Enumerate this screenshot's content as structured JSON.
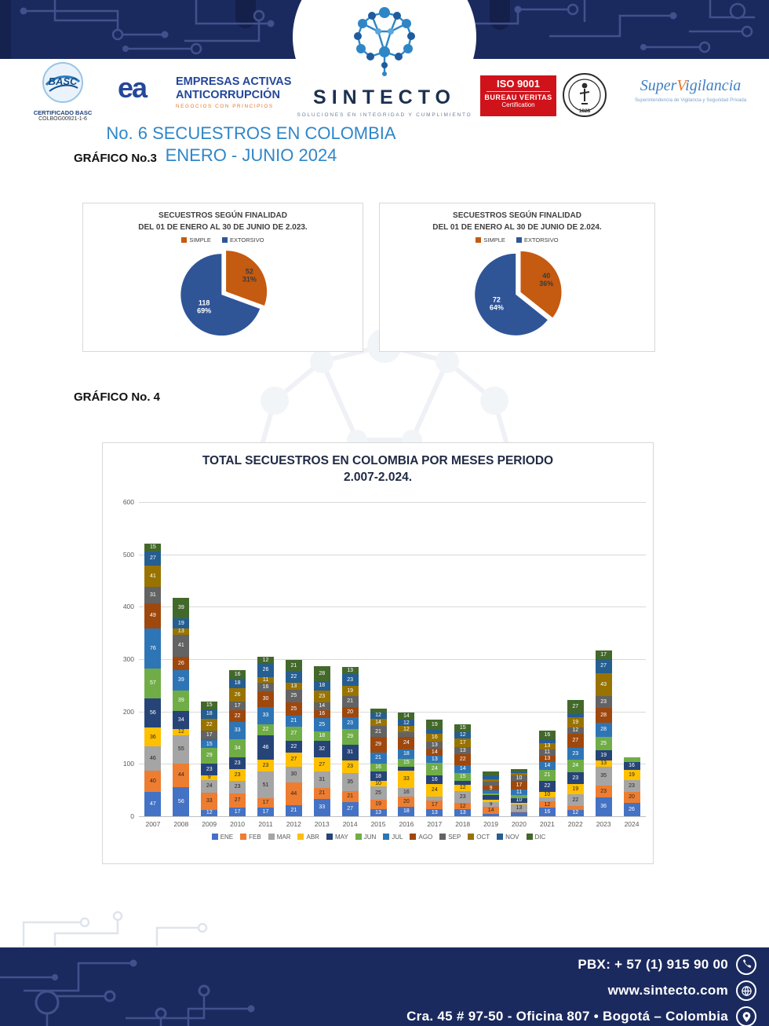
{
  "page": {
    "title_line1": "No. 6 SECUESTROS EN COLOMBIA",
    "title_line2": "ENERO - JUNIO 2024",
    "grafico3_label": "GRÁFICO No.3",
    "grafico4_label": "GRÁFICO No. 4"
  },
  "header": {
    "basc": {
      "brand": "BASC",
      "cert_line1": "CERTIFICADO BASC",
      "cert_line2": "COLBOG00921-1-6"
    },
    "eaa": {
      "monogram": "ea",
      "line1": "EMPRESAS ACTIVAS",
      "line2": "ANTICORRUPCIÓN",
      "line3": "NEGOCIOS CON PRINCIPIOS"
    },
    "sintecto": {
      "wordmark": "SINTECTO",
      "tagline": "SOLUCIONES EN INTEGRIDAD Y CUMPLIMIENTO"
    },
    "iso": {
      "line1": "ISO 9001",
      "line2": "BUREAU VERITAS",
      "line3": "Certification",
      "seal_year": "1828"
    },
    "supervigilancia": {
      "word_a": "Super",
      "word_b": "V",
      "word_c": "igilancia",
      "tagline": "Superintendencia de Vigilancia y Seguridad Privada"
    }
  },
  "footer": {
    "pbx": "PBX: + 57 (1) 915 90 00",
    "website": "www.sintecto.com",
    "address": "Cra. 45 # 97-50 - Oficina 807 • Bogotá – Colombia"
  },
  "chart_data": [
    {
      "type": "pie",
      "title_line1": "SECUESTROS SEGÚN FINALIDAD",
      "title_line2": "DEL 01 DE ENERO AL 30 DE JUNIO DE 2.023.",
      "legend": [
        "SIMPLE",
        "EXTORSIVO"
      ],
      "values": [
        52,
        118
      ],
      "percent_labels": [
        "31%",
        "69%"
      ],
      "colors": [
        "#C55A11",
        "#2F5597"
      ],
      "label_text_colors": [
        "#3B3B3B",
        "#FFFFFF"
      ],
      "legend_position": "top"
    },
    {
      "type": "pie",
      "title_line1": "SECUESTROS SEGÚN FINALIDAD",
      "title_line2": "DEL 01 DE ENERO AL 30 DE JUNIO DE 2.024.",
      "legend": [
        "SIMPLE",
        "EXTORSIVO"
      ],
      "values": [
        40,
        72
      ],
      "percent_labels": [
        "36%",
        "64%"
      ],
      "colors": [
        "#C55A11",
        "#2F5597"
      ],
      "label_text_colors": [
        "#3B3B3B",
        "#FFFFFF"
      ],
      "legend_position": "top"
    },
    {
      "type": "bar",
      "stacked": true,
      "title_line1": "TOTAL SECUESTROS EN COLOMBIA POR MESES PERIODO",
      "title_line2": "2.007-2.024.",
      "xlabel": "",
      "ylabel": "",
      "ylim": [
        0,
        600
      ],
      "yticks": [
        0,
        100,
        200,
        300,
        400,
        500,
        600
      ],
      "grid": true,
      "legend_position": "bottom",
      "categories": [
        "2007",
        "2008",
        "2009",
        "2010",
        "2011",
        "2012",
        "2013",
        "2014",
        "2015",
        "2016",
        "2017",
        "2018",
        "2019",
        "2020",
        "2021",
        "2022",
        "2023",
        "2024"
      ],
      "series": [
        {
          "name": "ENE",
          "color": "#4472C4",
          "values": [
            47,
            56,
            12,
            17,
            17,
            21,
            33,
            27,
            13,
            18,
            13,
            13,
            4,
            7,
            16,
            12,
            36,
            26
          ]
        },
        {
          "name": "FEB",
          "color": "#ED7D31",
          "values": [
            40,
            44,
            33,
            27,
            17,
            44,
            21,
            21,
            19,
            20,
            17,
            12,
            14,
            2,
            12,
            8,
            23,
            20
          ]
        },
        {
          "name": "MAR",
          "color": "#A5A5A5",
          "values": [
            46,
            55,
            24,
            23,
            51,
            30,
            31,
            35,
            25,
            16,
            8,
            23,
            9,
            13,
            8,
            22,
            35,
            23
          ]
        },
        {
          "name": "ABR",
          "color": "#FFC000",
          "values": [
            36,
            12,
            9,
            23,
            23,
            27,
            27,
            23,
            10,
            33,
            24,
            12,
            5,
            3,
            10,
            19,
            13,
            19
          ]
        },
        {
          "name": "MAY",
          "color": "#264478",
          "values": [
            56,
            34,
            23,
            23,
            46,
            22,
            32,
            31,
            18,
            8,
            16,
            8,
            8,
            10,
            22,
            23,
            19,
            16
          ]
        },
        {
          "name": "JUN",
          "color": "#70AD47",
          "values": [
            57,
            39,
            29,
            34,
            22,
            27,
            18,
            29,
            16,
            15,
            24,
            15,
            3,
            5,
            21,
            24,
            25,
            8
          ]
        },
        {
          "name": "JUL",
          "color": "#2E75B6",
          "values": [
            76,
            39,
            15,
            33,
            33,
            21,
            25,
            23,
            21,
            18,
            13,
            14,
            6,
            11,
            14,
            23,
            28,
            0
          ]
        },
        {
          "name": "AGO",
          "color": "#9E480E",
          "values": [
            49,
            26,
            2,
            22,
            30,
            25,
            16,
            20,
            29,
            24,
            14,
            22,
            9,
            17,
            13,
            27,
            28,
            0
          ]
        },
        {
          "name": "SEP",
          "color": "#636363",
          "values": [
            31,
            41,
            17,
            17,
            16,
            25,
            14,
            21,
            21,
            8,
            13,
            13,
            8,
            10,
            11,
            12,
            23,
            0
          ]
        },
        {
          "name": "OCT",
          "color": "#997300",
          "values": [
            41,
            13,
            22,
            26,
            11,
            13,
            23,
            19,
            14,
            12,
            16,
            17,
            5,
            4,
            13,
            19,
            43,
            0
          ]
        },
        {
          "name": "NOV",
          "color": "#255E91",
          "values": [
            27,
            19,
            18,
            18,
            26,
            22,
            18,
            23,
            12,
            12,
            7,
            12,
            7,
            4,
            7,
            6,
            27,
            0
          ]
        },
        {
          "name": "DIC",
          "color": "#43682B",
          "values": [
            15,
            39,
            15,
            16,
            12,
            21,
            28,
            13,
            8,
            14,
            19,
            15,
            8,
            4,
            16,
            27,
            17,
            0
          ]
        }
      ]
    }
  ]
}
